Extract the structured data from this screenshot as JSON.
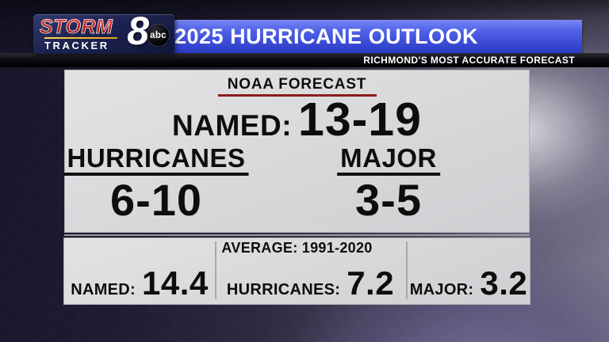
{
  "logo": {
    "storm": "STORM",
    "tracker": "TRACKER",
    "channel": "8",
    "network": "abc"
  },
  "header": {
    "title": "2025 HURRICANE OUTLOOK",
    "tagline": "RICHMOND'S MOST ACCURATE FORECAST"
  },
  "noaa": {
    "heading": "NOAA FORECAST",
    "named_label": "NAMED:",
    "named_value": "13-19",
    "hurricanes_label": "HURRICANES",
    "hurricanes_value": "6-10",
    "major_label": "MAJOR",
    "major_value": "3-5"
  },
  "average": {
    "heading": "AVERAGE: 1991-2020",
    "cells": [
      {
        "label": "NAMED:",
        "value": "14.4"
      },
      {
        "label": "HURRICANES:",
        "value": "7.2"
      },
      {
        "label": "MAJOR:",
        "value": "3.2"
      }
    ]
  },
  "colors": {
    "banner_blue": "#4154dd",
    "underline_red": "#8f1b1b",
    "panel_gray": "#d8d8da",
    "strip_black": "#0d0d13",
    "logo_navy": "#1c2350",
    "storm_red": "#c02020",
    "background_purple": "#2c2940"
  },
  "chart_data": {
    "type": "table",
    "title": "2025 Hurricane Outlook",
    "sections": [
      {
        "name": "NOAA FORECAST",
        "rows": [
          [
            "NAMED",
            "13-19"
          ],
          [
            "HURRICANES",
            "6-10"
          ],
          [
            "MAJOR",
            "3-5"
          ]
        ]
      },
      {
        "name": "AVERAGE: 1991-2020",
        "rows": [
          [
            "NAMED",
            14.4
          ],
          [
            "HURRICANES",
            7.2
          ],
          [
            "MAJOR",
            3.2
          ]
        ]
      }
    ]
  }
}
